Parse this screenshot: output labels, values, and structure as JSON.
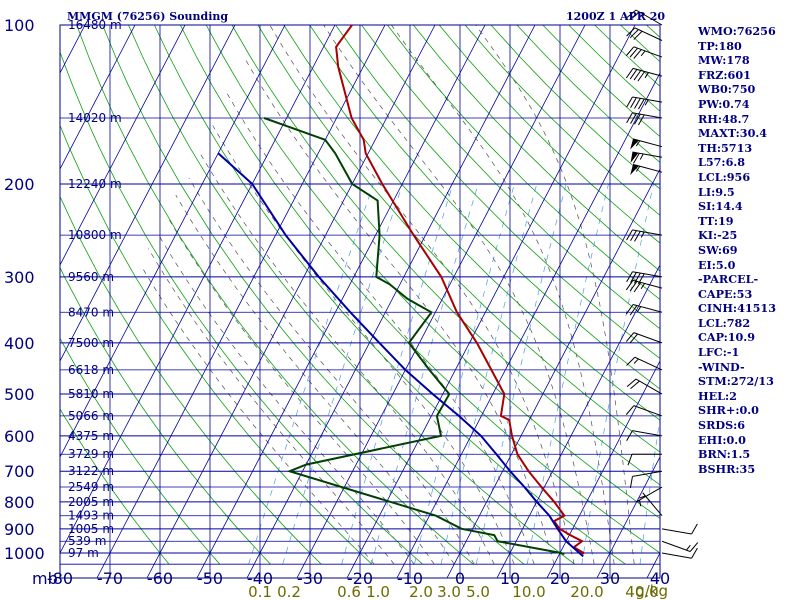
{
  "header": {
    "station_title": "MMGM (76256) Sounding",
    "time_title": "1200Z  1 APR 20"
  },
  "indices": [
    "WMO:76256",
    "TP:180",
    "MW:178",
    "FRZ:601",
    "WB0:750",
    "PW:0.74",
    "RH:48.7",
    "MAXT:30.4",
    "TH:5713",
    "L57:6.8",
    "LCL:956",
    "LI:9.5",
    "SI:14.4",
    "TT:19",
    "KI:-25",
    "SW:69",
    "EI:5.0",
    "-PARCEL-",
    "CAPE:53",
    "CINH:41513",
    "LCL:782",
    "CAP:10.9",
    "LFC:-1",
    "-WIND-",
    "STM:272/13",
    "HEL:2",
    "SHR+:0.0",
    "SRDS:6",
    "EHI:0.0",
    "BRN:1.5",
    "BSHR:35"
  ],
  "chart_data": {
    "type": "line",
    "chart_kind": "skew-t log-p sounding",
    "pressure_axis": {
      "unit": "mb",
      "levels": [
        100,
        200,
        300,
        400,
        500,
        600,
        700,
        800,
        900,
        1000
      ],
      "range": [
        100,
        1050
      ],
      "scale": "log",
      "labels": [
        "100",
        "200",
        "300",
        "400",
        "500",
        "600",
        "700",
        "800",
        "900",
        "1000"
      ]
    },
    "temperature_axis": {
      "unit": "°C",
      "ticks": [
        -80,
        -70,
        -60,
        -50,
        -40,
        -30,
        -20,
        -10,
        0,
        10,
        20,
        30,
        40
      ],
      "labels": [
        "-80",
        "-70",
        "-60",
        "-50",
        "-40",
        "-30",
        "-20",
        "-10",
        "0",
        "10",
        "20",
        "30",
        "40"
      ],
      "range": [
        -80,
        40
      ],
      "skew_per_decade_C": 55,
      "unit_label": "mb"
    },
    "mixing_ratio_axis": {
      "unit_label": "g/kg",
      "values": [
        0.1,
        0.2,
        0.6,
        1.0,
        2.0,
        3.0,
        5.0,
        10.0,
        20.0,
        40.0
      ],
      "labels": [
        "0.1",
        "0.2",
        "0.6",
        "1.0",
        "2.0",
        "3.0",
        "5.0",
        "10.0",
        "20.0",
        "40.0"
      ]
    },
    "height_labels": [
      {
        "p": 100,
        "label": "16480 m"
      },
      {
        "p": 150,
        "label": "14020 m"
      },
      {
        "p": 200,
        "label": "12240 m"
      },
      {
        "p": 250,
        "label": "10800 m"
      },
      {
        "p": 300,
        "label": "9560 m"
      },
      {
        "p": 350,
        "label": "8470 m"
      },
      {
        "p": 400,
        "label": "7500 m"
      },
      {
        "p": 450,
        "label": "6618 m"
      },
      {
        "p": 500,
        "label": "5810 m"
      },
      {
        "p": 550,
        "label": "5066 m"
      },
      {
        "p": 600,
        "label": "4375 m"
      },
      {
        "p": 650,
        "label": "3729 m"
      },
      {
        "p": 700,
        "label": "3122 m"
      },
      {
        "p": 750,
        "label": "2549 m"
      },
      {
        "p": 800,
        "label": "2005 m"
      },
      {
        "p": 850,
        "label": "1493 m"
      },
      {
        "p": 900,
        "label": "1005 m"
      },
      {
        "p": 950,
        "label": "539 m"
      },
      {
        "p": 1000,
        "label": "97 m"
      }
    ],
    "grid": true,
    "background_lines": [
      "isobars",
      "isotherms",
      "dry adiabats",
      "moist adiabats",
      "mixing ratio"
    ],
    "series": [
      {
        "color": "#a80000",
        "points": [
          {
            "p": 1005,
            "t": 24.6
          },
          {
            "p": 1000,
            "t": 24.7
          },
          {
            "p": 975,
            "t": 22.2
          },
          {
            "p": 950,
            "t": 23.2
          },
          {
            "p": 925,
            "t": 20.2
          },
          {
            "p": 900,
            "t": 17.4
          },
          {
            "p": 870,
            "t": 15.5
          },
          {
            "p": 850,
            "t": 17.0
          },
          {
            "p": 800,
            "t": 13.5
          },
          {
            "p": 750,
            "t": 9.4
          },
          {
            "p": 700,
            "t": 5.2
          },
          {
            "p": 650,
            "t": 1.2
          },
          {
            "p": 600,
            "t": -1.8
          },
          {
            "p": 560,
            "t": -4.0
          },
          {
            "p": 550,
            "t": -6.1
          },
          {
            "p": 500,
            "t": -7.7
          },
          {
            "p": 450,
            "t": -12.8
          },
          {
            "p": 400,
            "t": -18.5
          },
          {
            "p": 350,
            "t": -25.7
          },
          {
            "p": 300,
            "t": -32.5
          },
          {
            "p": 250,
            "t": -42.4
          },
          {
            "p": 200,
            "t": -54.0
          },
          {
            "p": 175,
            "t": -60.5
          },
          {
            "p": 165,
            "t": -62.3
          },
          {
            "p": 150,
            "t": -67.0
          },
          {
            "p": 120,
            "t": -75.0
          },
          {
            "p": 110,
            "t": -77.5
          },
          {
            "p": 100,
            "t": -76.6
          }
        ]
      },
      {
        "color": "#004000",
        "points": [
          {
            "p": 1005,
            "t": 21.0
          },
          {
            "p": 1000,
            "t": 20.2
          },
          {
            "p": 950,
            "t": 6.3
          },
          {
            "p": 925,
            "t": 5.0
          },
          {
            "p": 900,
            "t": -2.2
          },
          {
            "p": 850,
            "t": -8.7
          },
          {
            "p": 700,
            "t": -42.6
          },
          {
            "p": 680,
            "t": -40.0
          },
          {
            "p": 600,
            "t": -16.0
          },
          {
            "p": 550,
            "t": -18.9
          },
          {
            "p": 500,
            "t": -18.7
          },
          {
            "p": 450,
            "t": -25.2
          },
          {
            "p": 400,
            "t": -32.1
          },
          {
            "p": 350,
            "t": -30.8
          },
          {
            "p": 330,
            "t": -37.0
          },
          {
            "p": 310,
            "t": -42.0
          },
          {
            "p": 300,
            "t": -45.5
          },
          {
            "p": 250,
            "t": -49.2
          },
          {
            "p": 215,
            "t": -53.2
          },
          {
            "p": 200,
            "t": -60.0
          },
          {
            "p": 175,
            "t": -66.6
          },
          {
            "p": 165,
            "t": -70.0
          },
          {
            "p": 150,
            "t": -84.5
          }
        ]
      },
      {
        "color": "#0000a0",
        "points": [
          {
            "p": 1015,
            "t": 25.0
          },
          {
            "p": 950,
            "t": 20.0
          },
          {
            "p": 900,
            "t": 17.0
          },
          {
            "p": 850,
            "t": 14.0
          },
          {
            "p": 800,
            "t": 10.0
          },
          {
            "p": 750,
            "t": 6.0
          },
          {
            "p": 700,
            "t": 1.5
          },
          {
            "p": 650,
            "t": -3.0
          },
          {
            "p": 600,
            "t": -8.0
          },
          {
            "p": 550,
            "t": -14.5
          },
          {
            "p": 500,
            "t": -22.0
          },
          {
            "p": 450,
            "t": -30.0
          },
          {
            "p": 400,
            "t": -38.0
          },
          {
            "p": 350,
            "t": -47.0
          },
          {
            "p": 300,
            "t": -57.0
          },
          {
            "p": 250,
            "t": -68.0
          },
          {
            "p": 200,
            "t": -80.0
          },
          {
            "p": 175,
            "t": -90.0
          }
        ]
      }
    ],
    "wind_barbs": [
      {
        "p": 100,
        "dir": 300,
        "kt": 25
      },
      {
        "p": 107,
        "dir": 295,
        "kt": 30
      },
      {
        "p": 115,
        "dir": 290,
        "kt": 35
      },
      {
        "p": 125,
        "dir": 285,
        "kt": 45
      },
      {
        "p": 140,
        "dir": 280,
        "kt": 45
      },
      {
        "p": 150,
        "dir": 280,
        "kt": 40
      },
      {
        "p": 170,
        "dir": 285,
        "kt": 55
      },
      {
        "p": 178,
        "dir": 280,
        "kt": 65
      },
      {
        "p": 190,
        "dir": 285,
        "kt": 55
      },
      {
        "p": 250,
        "dir": 280,
        "kt": 35
      },
      {
        "p": 300,
        "dir": 280,
        "kt": 40
      },
      {
        "p": 315,
        "dir": 285,
        "kt": 35
      },
      {
        "p": 350,
        "dir": 285,
        "kt": 25
      },
      {
        "p": 400,
        "dir": 290,
        "kt": 20
      },
      {
        "p": 450,
        "dir": 295,
        "kt": 15
      },
      {
        "p": 500,
        "dir": 300,
        "kt": 20
      },
      {
        "p": 550,
        "dir": 290,
        "kt": 10
      },
      {
        "p": 600,
        "dir": 280,
        "kt": 10
      },
      {
        "p": 650,
        "dir": 270,
        "kt": 10
      },
      {
        "p": 700,
        "dir": 260,
        "kt": 10
      },
      {
        "p": 750,
        "dir": 240,
        "kt": 5
      },
      {
        "p": 850,
        "dir": 320,
        "kt": 5
      },
      {
        "p": 900,
        "dir": 100,
        "kt": 10
      },
      {
        "p": 950,
        "dir": 110,
        "kt": 15
      },
      {
        "p": 1000,
        "dir": 100,
        "kt": 10
      }
    ]
  }
}
